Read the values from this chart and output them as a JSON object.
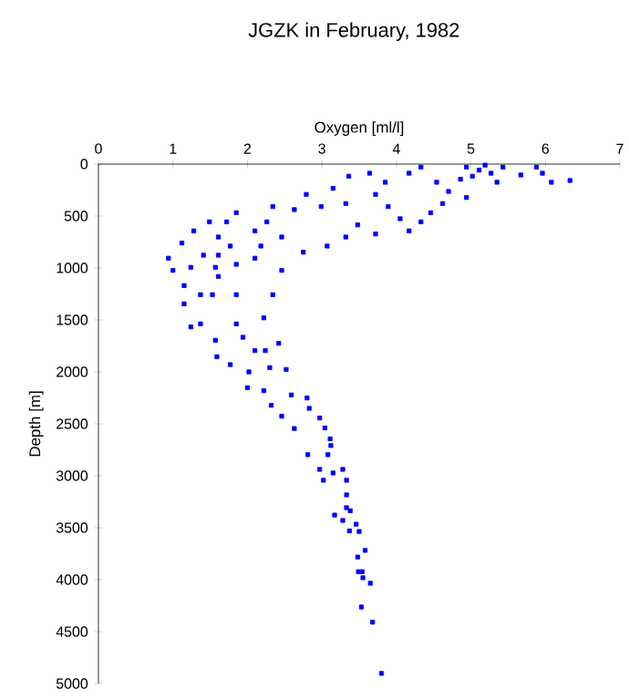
{
  "chart_data": {
    "type": "scatter",
    "title": "JGZK in February, 1982",
    "xlabel": "Oxygen [ml/l]",
    "ylabel": "Depth [m]",
    "xlim": [
      0,
      7
    ],
    "xticks": [
      0,
      1,
      2,
      3,
      4,
      5,
      6,
      7
    ],
    "ylim": [
      5000,
      0
    ],
    "yticks": [
      0,
      500,
      1000,
      1500,
      2000,
      2500,
      3000,
      3500,
      4000,
      4500,
      5000
    ],
    "marker": "square",
    "series": [
      {
        "color": "#0000ff",
        "x": [
          4.94,
          5.11,
          5.27,
          5.43,
          4.86,
          5.35,
          5.02,
          5.19,
          5.88,
          5.96,
          6.08,
          6.33,
          5.67,
          4.33,
          4.17,
          4.54,
          4.7,
          4.94,
          4.62,
          4.46,
          4.33,
          4.17,
          4.05,
          3.89,
          3.72,
          3.64,
          3.85,
          3.36,
          3.15,
          2.79,
          2.99,
          3.32,
          3.48,
          3.72,
          3.32,
          3.07,
          2.75,
          2.46,
          2.34,
          2.63,
          2.26,
          2.1,
          1.85,
          1.72,
          1.49,
          1.28,
          1.12,
          0.94,
          1.0,
          1.15,
          1.15,
          1.61,
          1.61,
          1.57,
          1.61,
          1.53,
          1.37,
          1.85,
          2.1,
          2.18,
          2.46,
          2.34,
          1.85,
          1.41,
          1.24,
          1.77,
          2.22,
          1.24,
          1.37,
          1.85,
          1.94,
          1.57,
          1.59,
          1.77,
          2.1,
          2.24,
          2.42,
          2.3,
          2.52,
          2.02,
          2.0,
          2.22,
          2.59,
          2.8,
          2.32,
          2.46,
          2.83,
          2.97,
          2.63,
          2.81,
          3.04,
          3.11,
          3.12,
          3.08,
          2.97,
          3.02,
          3.15,
          3.28,
          3.33,
          3.33,
          3.33,
          3.38,
          3.17,
          3.28,
          3.46,
          3.37,
          3.5,
          3.58,
          3.48,
          3.49,
          3.54,
          3.55,
          3.65,
          3.53,
          3.68,
          3.8
        ],
        "values": [
          29,
          58,
          88,
          29,
          146,
          175,
          117,
          10,
          29,
          88,
          175,
          158,
          105,
          29,
          88,
          175,
          263,
          322,
          380,
          468,
          556,
          643,
          526,
          409,
          292,
          88,
          175,
          117,
          234,
          292,
          409,
          380,
          585,
          673,
          702,
          789,
          848,
          702,
          409,
          438,
          556,
          643,
          468,
          556,
          556,
          643,
          760,
          906,
          1023,
          1170,
          1345,
          702,
          877,
          994,
          1082,
          1257,
          1257,
          965,
          906,
          789,
          1023,
          1257,
          1257,
          877,
          994,
          789,
          1480,
          1567,
          1538,
          1538,
          1667,
          1696,
          1854,
          1930,
          1795,
          1795,
          1725,
          1959,
          1977,
          2000,
          2152,
          2181,
          2222,
          2251,
          2322,
          2427,
          2351,
          2444,
          2545,
          2797,
          2539,
          2645,
          2709,
          2797,
          2938,
          3043,
          2973,
          2938,
          3043,
          3184,
          3307,
          3337,
          3378,
          3430,
          3466,
          3530,
          3536,
          3718,
          3782,
          3923,
          3923,
          3981,
          4034,
          4263,
          4409,
          4902
        ]
      }
    ]
  }
}
